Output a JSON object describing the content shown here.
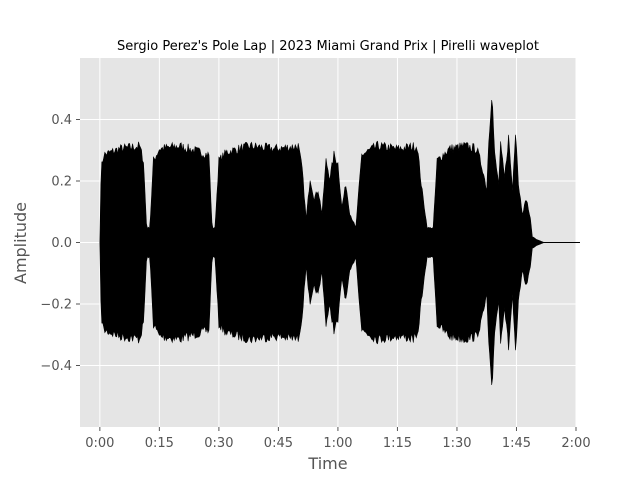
{
  "chart_data": {
    "type": "area",
    "title": "Sergio Perez's Pole Lap | 2023 Miami Grand Prix | Pirelli waveplot",
    "xlabel": "Time",
    "ylabel": "Amplitude",
    "xlim": [
      -5,
      120
    ],
    "ylim": [
      -0.6,
      0.6
    ],
    "grid": true,
    "x_ticks": [
      {
        "value": 0,
        "label": "0:00"
      },
      {
        "value": 15,
        "label": "0:15"
      },
      {
        "value": 30,
        "label": "0:30"
      },
      {
        "value": 45,
        "label": "0:45"
      },
      {
        "value": 60,
        "label": "1:00"
      },
      {
        "value": 75,
        "label": "1:15"
      },
      {
        "value": 90,
        "label": "1:30"
      },
      {
        "value": 105,
        "label": "1:45"
      },
      {
        "value": 120,
        "label": "2:00"
      }
    ],
    "y_ticks": [
      {
        "value": -0.4,
        "label": "−0.4"
      },
      {
        "value": -0.2,
        "label": "−0.2"
      },
      {
        "value": 0.0,
        "label": "0.0"
      },
      {
        "value": 0.2,
        "label": "0.2"
      },
      {
        "value": 0.4,
        "label": "0.4"
      }
    ],
    "series": [
      {
        "envelope": [
          [
            0,
            0.0
          ],
          [
            0.3,
            0.25
          ],
          [
            1,
            0.3
          ],
          [
            5,
            0.32
          ],
          [
            10,
            0.33
          ],
          [
            11,
            0.28
          ],
          [
            11.8,
            0.05
          ],
          [
            12.6,
            0.05
          ],
          [
            13.5,
            0.28
          ],
          [
            15,
            0.32
          ],
          [
            20,
            0.33
          ],
          [
            25,
            0.31
          ],
          [
            27.5,
            0.3
          ],
          [
            28.3,
            0.05
          ],
          [
            29,
            0.05
          ],
          [
            30,
            0.28
          ],
          [
            32,
            0.31
          ],
          [
            38,
            0.33
          ],
          [
            44,
            0.32
          ],
          [
            50,
            0.33
          ],
          [
            51,
            0.25
          ],
          [
            52,
            0.08
          ],
          [
            53,
            0.22
          ],
          [
            54,
            0.15
          ],
          [
            55,
            0.18
          ],
          [
            56,
            0.1
          ],
          [
            57,
            0.28
          ],
          [
            58,
            0.22
          ],
          [
            59,
            0.3
          ],
          [
            60,
            0.27
          ],
          [
            61,
            0.12
          ],
          [
            62,
            0.2
          ],
          [
            63,
            0.1
          ],
          [
            64.5,
            0.05
          ],
          [
            66,
            0.3
          ],
          [
            70,
            0.33
          ],
          [
            75,
            0.32
          ],
          [
            80,
            0.33
          ],
          [
            81,
            0.2
          ],
          [
            82.5,
            0.05
          ],
          [
            84,
            0.05
          ],
          [
            85,
            0.28
          ],
          [
            88,
            0.32
          ],
          [
            92,
            0.33
          ],
          [
            95,
            0.32
          ],
          [
            96.5,
            0.25
          ],
          [
            97.5,
            0.18
          ],
          [
            98,
            0.35
          ],
          [
            98.8,
            0.52
          ],
          [
            99.5,
            0.3
          ],
          [
            100.5,
            0.2
          ],
          [
            101,
            0.33
          ],
          [
            102,
            0.22
          ],
          [
            103,
            0.36
          ],
          [
            104,
            0.18
          ],
          [
            104.8,
            0.4
          ],
          [
            105.5,
            0.2
          ],
          [
            106.5,
            0.1
          ],
          [
            107.5,
            0.15
          ],
          [
            108.5,
            0.08
          ],
          [
            109,
            0.02
          ],
          [
            110,
            0.01
          ],
          [
            112,
            0.0
          ],
          [
            121,
            0.0
          ]
        ],
        "color": "#000000"
      }
    ]
  }
}
